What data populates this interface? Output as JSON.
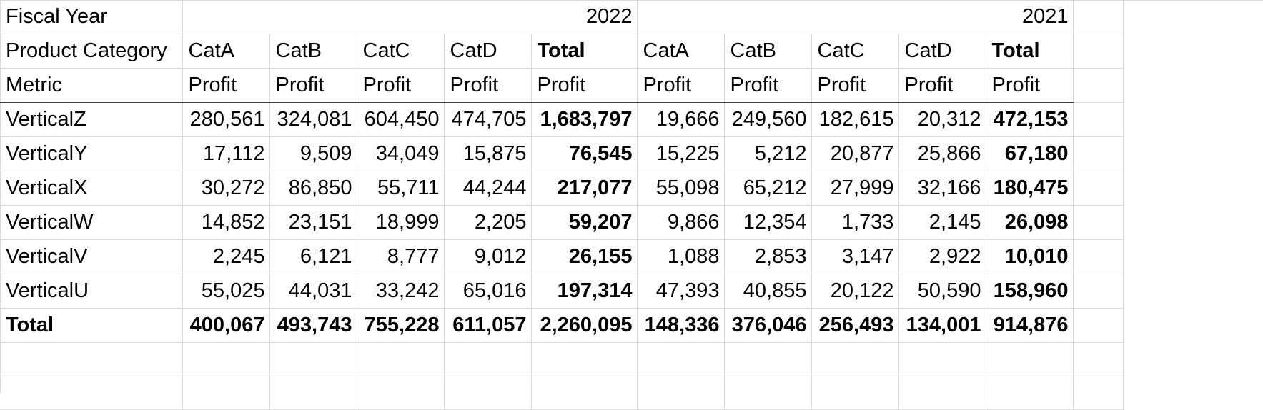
{
  "labels": {
    "fiscal_year": "Fiscal Year",
    "product_category": "Product Category",
    "metric": "Metric"
  },
  "years": [
    "2022",
    "2021"
  ],
  "categories": [
    "CatA",
    "CatB",
    "CatC",
    "CatD",
    "Total"
  ],
  "metric_label": "Profit",
  "rows": [
    {
      "name": "VerticalZ",
      "y2022": [
        "280,561",
        "324,081",
        "604,450",
        "474,705",
        "1,683,797"
      ],
      "y2021": [
        "19,666",
        "249,560",
        "182,615",
        "20,312",
        "472,153"
      ]
    },
    {
      "name": "VerticalY",
      "y2022": [
        "17,112",
        "9,509",
        "34,049",
        "15,875",
        "76,545"
      ],
      "y2021": [
        "15,225",
        "5,212",
        "20,877",
        "25,866",
        "67,180"
      ]
    },
    {
      "name": "VerticalX",
      "y2022": [
        "30,272",
        "86,850",
        "55,711",
        "44,244",
        "217,077"
      ],
      "y2021": [
        "55,098",
        "65,212",
        "27,999",
        "32,166",
        "180,475"
      ]
    },
    {
      "name": "VerticalW",
      "y2022": [
        "14,852",
        "23,151",
        "18,999",
        "2,205",
        "59,207"
      ],
      "y2021": [
        "9,866",
        "12,354",
        "1,733",
        "2,145",
        "26,098"
      ]
    },
    {
      "name": "VerticalV",
      "y2022": [
        "2,245",
        "6,121",
        "8,777",
        "9,012",
        "26,155"
      ],
      "y2021": [
        "1,088",
        "2,853",
        "3,147",
        "2,922",
        "10,010"
      ]
    },
    {
      "name": "VerticalU",
      "y2022": [
        "55,025",
        "44,031",
        "33,242",
        "65,016",
        "197,314"
      ],
      "y2021": [
        "47,393",
        "40,855",
        "20,122",
        "50,590",
        "158,960"
      ]
    }
  ],
  "total": {
    "name": "Total",
    "y2022": [
      "400,067",
      "493,743",
      "755,228",
      "611,057",
      "2,260,095"
    ],
    "y2021": [
      "148,336",
      "376,046",
      "256,493",
      "134,001",
      "914,876"
    ]
  }
}
